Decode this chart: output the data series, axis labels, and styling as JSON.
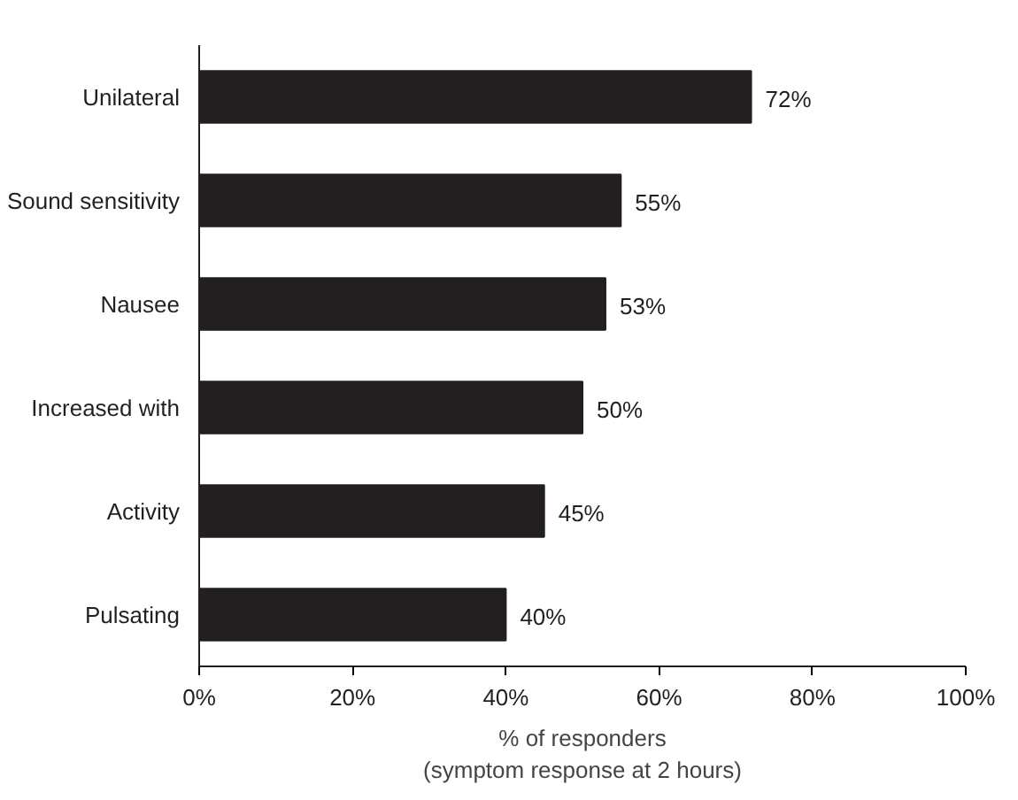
{
  "chart_data": {
    "type": "bar",
    "orientation": "horizontal",
    "categories": [
      "Unilateral",
      "Sound sensitivity",
      "Nausee",
      "Increased with",
      "Activity",
      "Pulsating"
    ],
    "values": [
      72,
      55,
      53,
      50,
      45,
      40
    ],
    "value_labels": [
      "72%",
      "55%",
      "53%",
      "50%",
      "45%",
      "40%"
    ],
    "color": "#231f20",
    "xlim": [
      0,
      100
    ],
    "xticks": [
      {
        "value": 0,
        "label": "0%"
      },
      {
        "value": 20,
        "label": "20%"
      },
      {
        "value": 40,
        "label": "40%"
      },
      {
        "value": 60,
        "label": "60%"
      },
      {
        "value": 80,
        "label": "80%"
      },
      {
        "value": 100,
        "label": "100%"
      }
    ],
    "xlabel": "% of responders\n(symptom response at 2 hours)",
    "grid": false
  }
}
